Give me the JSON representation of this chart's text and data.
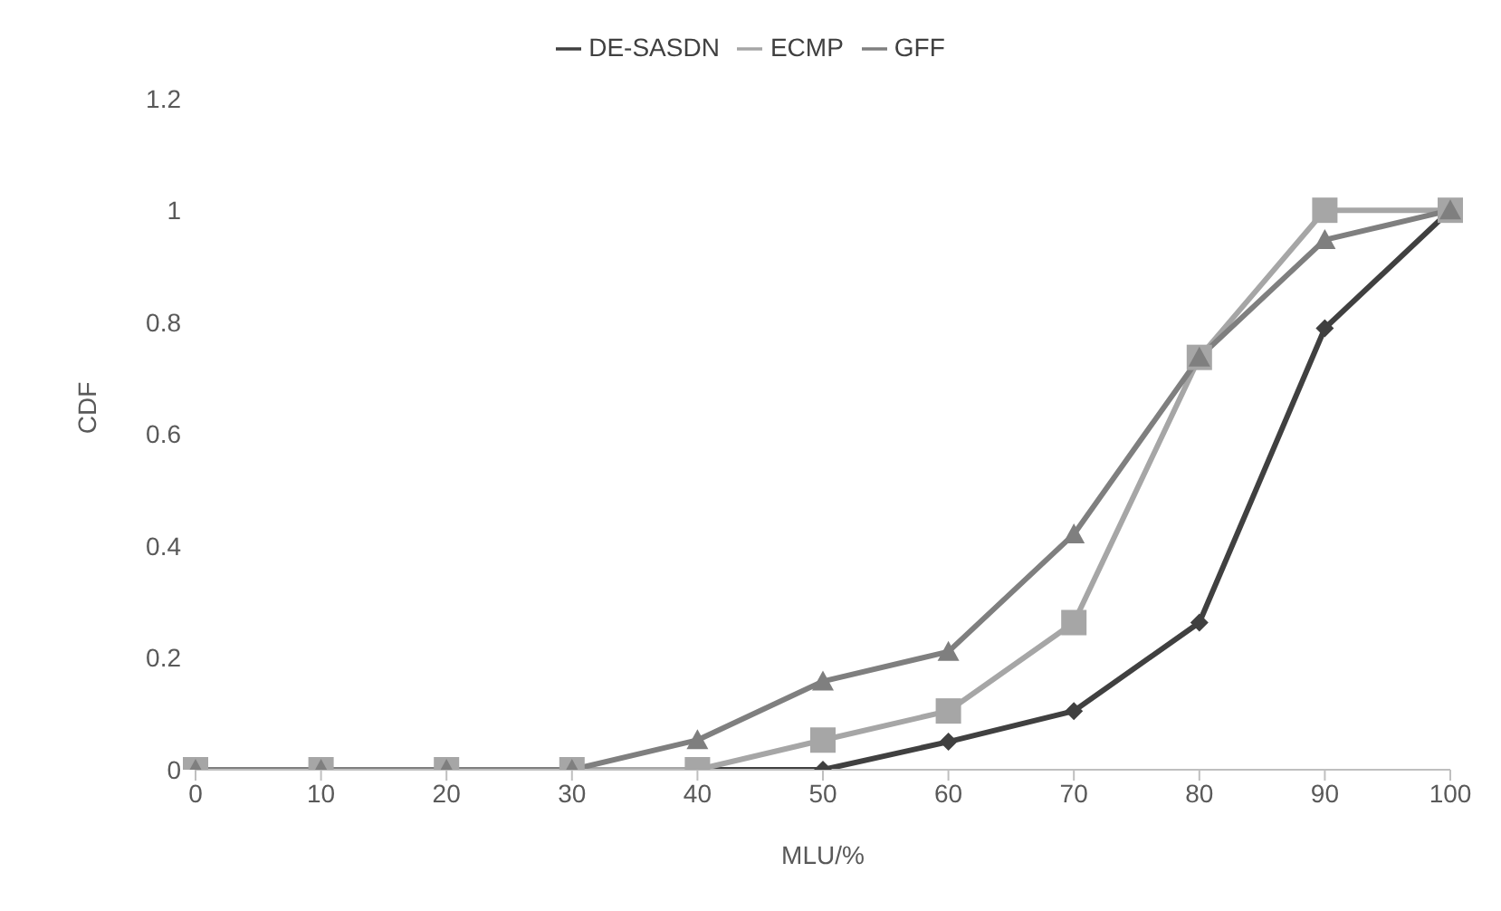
{
  "chart_data": {
    "type": "line",
    "xlabel": "MLU/%",
    "ylabel": "CDF",
    "categories": [
      "0",
      "10",
      "20",
      "30",
      "40",
      "50",
      "60",
      "70",
      "80",
      "90",
      "100"
    ],
    "series": [
      {
        "name": "DE-SASDN",
        "color": "#404040",
        "marker": "diamond",
        "values": [
          0,
          0,
          0,
          0,
          0,
          0,
          0.05,
          0.105,
          0.263,
          0.789,
          1
        ]
      },
      {
        "name": "ECMP",
        "color": "#a6a6a6",
        "marker": "square",
        "values": [
          0,
          0,
          0,
          0,
          0,
          0.053,
          0.105,
          0.263,
          0.737,
          1,
          1
        ]
      },
      {
        "name": "GFF",
        "color": "#7f7f7f",
        "marker": "triangle",
        "values": [
          0,
          0,
          0,
          0,
          0.053,
          0.158,
          0.211,
          0.421,
          0.737,
          0.947,
          1
        ]
      }
    ],
    "ylim": [
      0,
      1.2
    ],
    "yticks": [
      0,
      0.2,
      0.4,
      0.6,
      0.8,
      1,
      1.2
    ],
    "grid": false,
    "legend": "top"
  }
}
